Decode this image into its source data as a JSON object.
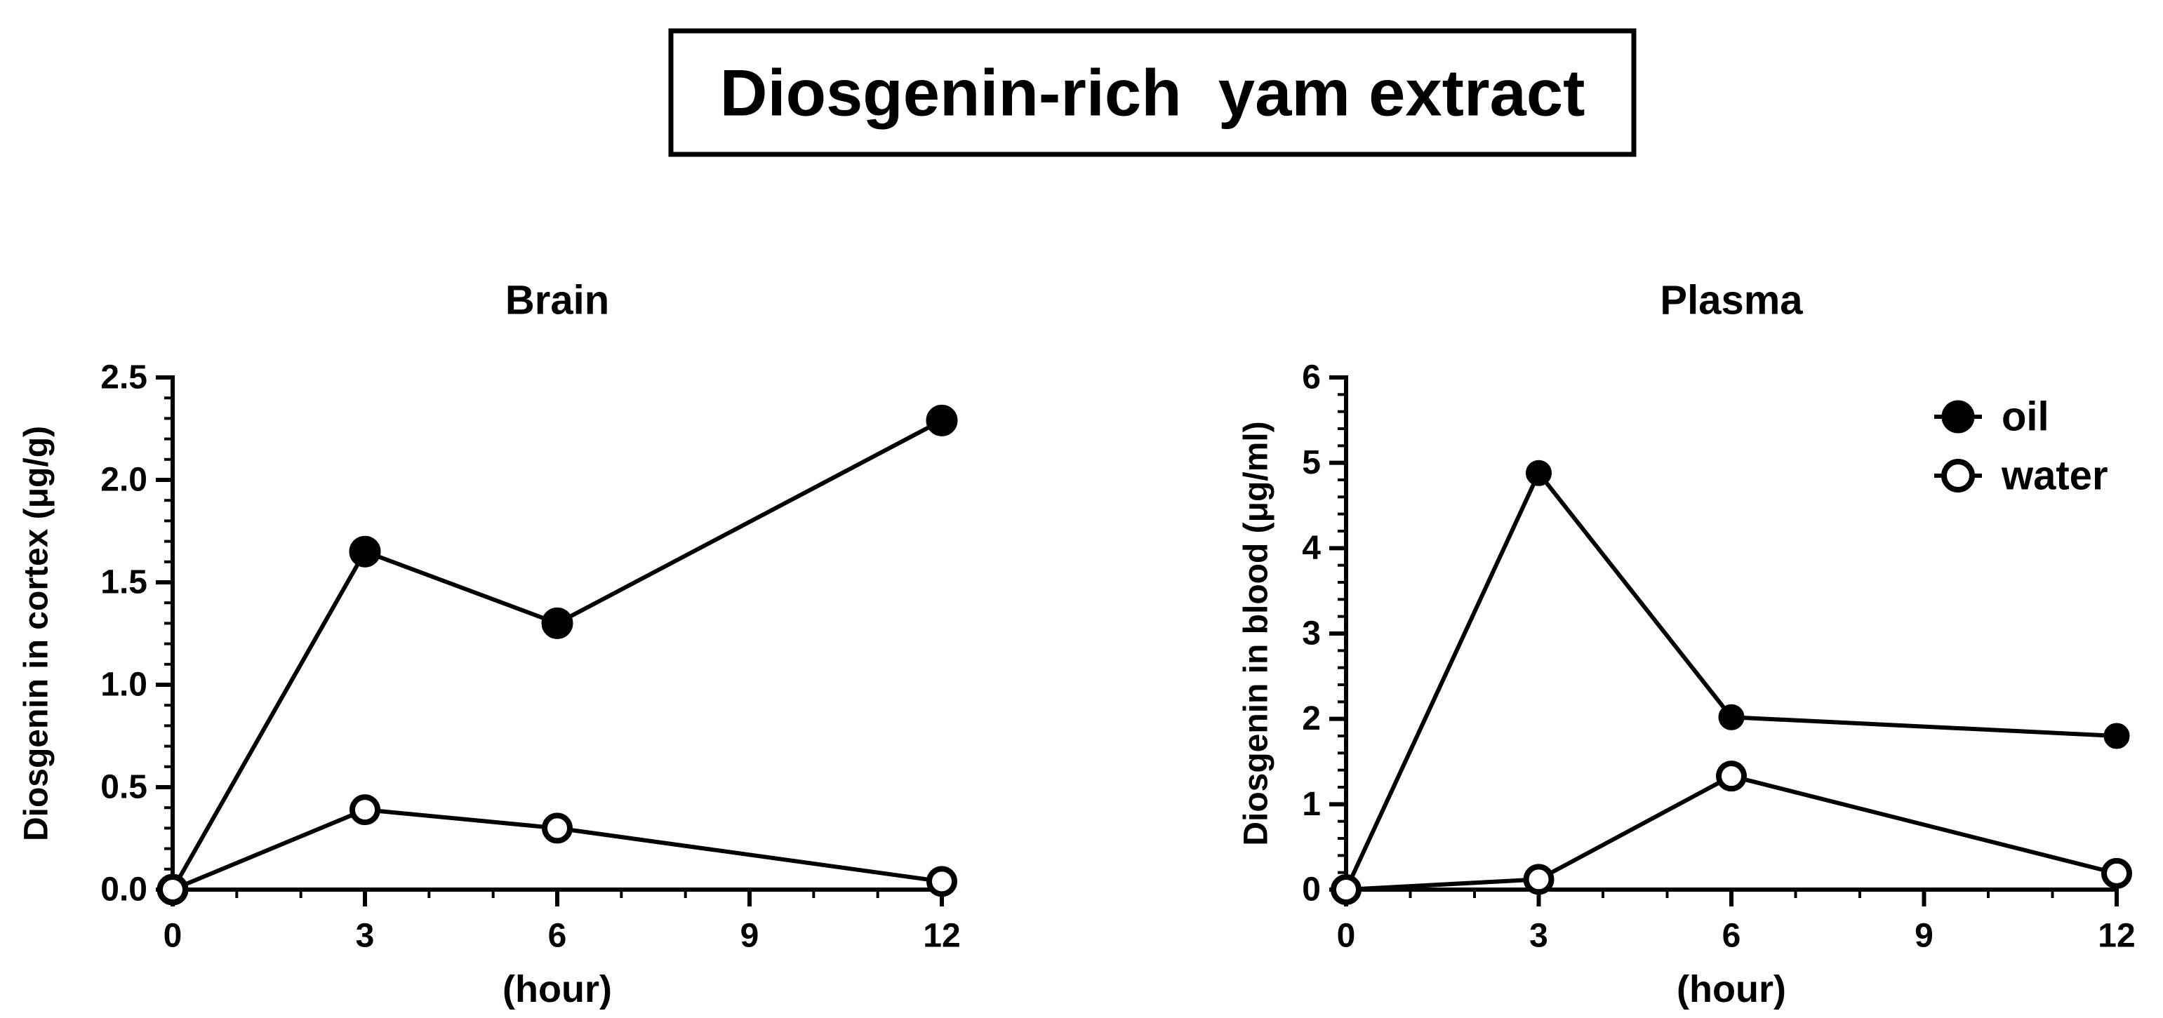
{
  "figure_title": "Diosgenin-rich  yam extract",
  "colors": {
    "line": "#000000",
    "marker_fill_oil": "#000000",
    "marker_fill_water": "#ffffff"
  },
  "legend": {
    "placement": "top-right of Plasma panel",
    "items": [
      {
        "label": "oil",
        "marker": "filled-circle"
      },
      {
        "label": "water",
        "marker": "open-circle"
      }
    ]
  },
  "chart_data": [
    {
      "type": "line",
      "title": "Brain",
      "xlabel": "(hour)",
      "ylabel": "Diosgenin in cortex (μg/g)",
      "xlim": [
        0,
        12
      ],
      "ylim": [
        0,
        2.5
      ],
      "xticks": [
        0,
        3,
        6,
        9,
        12
      ],
      "xtick_labels": [
        "0",
        "3",
        "6",
        "9",
        "12"
      ],
      "yticks": [
        0,
        0.5,
        1.0,
        1.5,
        2.0,
        2.5
      ],
      "ytick_labels": [
        "0.0",
        "0.5",
        "1.0",
        "1.5",
        "2.0",
        "2.5"
      ],
      "x": [
        0,
        3,
        6,
        12
      ],
      "series": [
        {
          "name": "oil",
          "values": [
            0,
            1.65,
            1.3,
            2.29
          ]
        },
        {
          "name": "water",
          "values": [
            0,
            0.39,
            0.3,
            0.04
          ]
        }
      ]
    },
    {
      "type": "line",
      "title": "Plasma",
      "xlabel": "(hour)",
      "ylabel": "Diosgenin in blood (μg/ml)",
      "xlim": [
        0,
        12
      ],
      "ylim": [
        0,
        6
      ],
      "xticks": [
        0,
        3,
        6,
        9,
        12
      ],
      "xtick_labels": [
        "0",
        "3",
        "6",
        "9",
        "12"
      ],
      "yticks": [
        0,
        1,
        2,
        3,
        4,
        5,
        6
      ],
      "ytick_labels": [
        "0",
        "1",
        "2",
        "3",
        "4",
        "5",
        "6"
      ],
      "x": [
        0,
        3,
        6,
        12
      ],
      "series": [
        {
          "name": "oil",
          "values": [
            0,
            4.88,
            2.02,
            1.8
          ]
        },
        {
          "name": "water",
          "values": [
            0,
            0.12,
            1.33,
            0.19
          ]
        }
      ]
    }
  ]
}
